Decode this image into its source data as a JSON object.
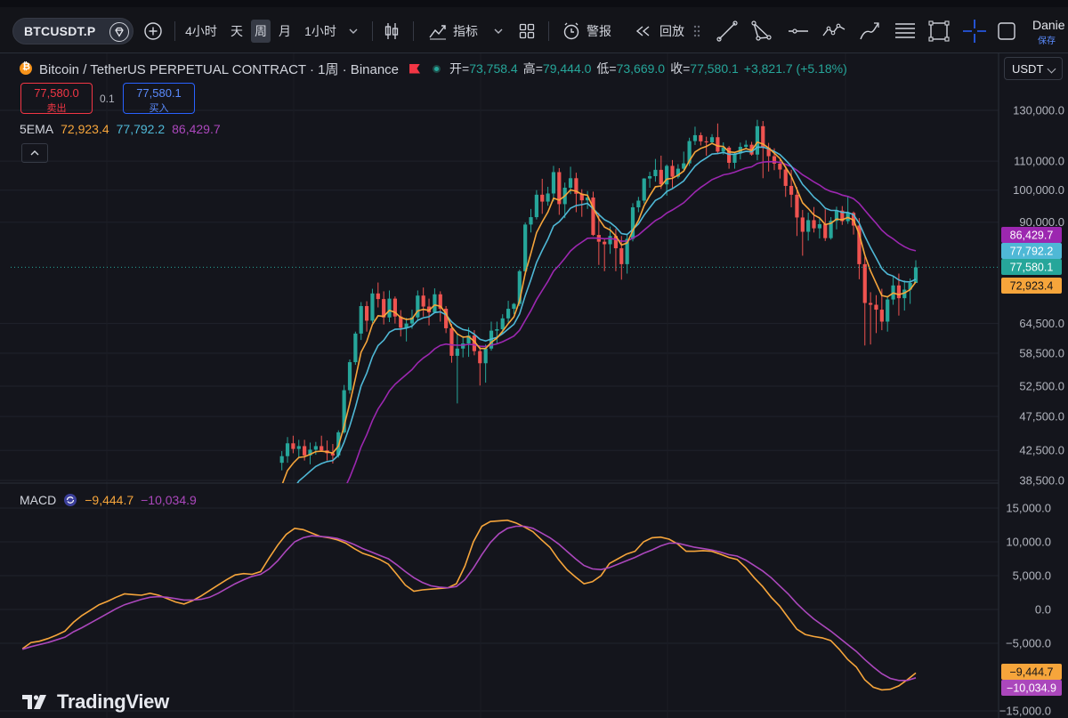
{
  "toolbar": {
    "symbol": "BTCUSDT.P",
    "intervals": [
      {
        "label": "4小时",
        "active": false
      },
      {
        "label": "天",
        "active": false
      },
      {
        "label": "周",
        "active": true
      },
      {
        "label": "月",
        "active": false
      },
      {
        "label": "1小时",
        "active": false
      }
    ],
    "indicators_label": "指标",
    "alert_label": "警报",
    "replay_label": "回放",
    "user_name": "Danie",
    "save_label": "保存"
  },
  "legend": {
    "title": "Bitcoin / TetherUS PERPETUAL CONTRACT · 1周 · Binance",
    "open_label": "开",
    "open": "73,758.4",
    "high_label": "高",
    "high": "79,444.0",
    "low_label": "低",
    "low": "73,669.0",
    "close_label": "收",
    "close": "77,580.1",
    "change": "+3,821.7 (+5.18%)"
  },
  "trade": {
    "sell_price": "77,580.0",
    "sell_label": "卖出",
    "spread": "0.1",
    "buy_price": "77,580.1",
    "buy_label": "买入"
  },
  "ema": {
    "label": "5EMA",
    "values": [
      "72,923.4",
      "77,792.2",
      "86,429.7"
    ]
  },
  "currency": "USDT",
  "macd": {
    "label": "MACD",
    "macd_value": "−9,444.7",
    "signal_value": "−10,034.9"
  },
  "brand": "TradingView",
  "colors": {
    "up": "#26a69a",
    "down": "#ef5350",
    "ema_fast": "#f6a53b",
    "ema_mid": "#4fb8d6",
    "ema_slow": "#9c27b0",
    "macd": "#f6a53b",
    "signal": "#ab47bc"
  },
  "chart_data": [
    {
      "type": "candlestick",
      "title": "Bitcoin / TetherUS PERPETUAL CONTRACT · 1周 · Binance",
      "y_ticks": [
        "130,000.0",
        "110,000.0",
        "100,000.0",
        "90,000.0",
        "64,500.0",
        "58,500.0",
        "52,500.0",
        "47,500.0",
        "42,500.0",
        "38,500.0"
      ],
      "price_badges": [
        {
          "label": "86,429.7",
          "color": "#9c27b0"
        },
        {
          "label": "77,792.2",
          "color": "#4fb8d6"
        },
        {
          "label": "77,580.1",
          "color": "#26a69a"
        },
        {
          "label": "72,923.4",
          "color": "#f6a53b"
        }
      ],
      "candles": [
        [
          40800,
          42400,
          39800,
          41700
        ],
        [
          41700,
          44400,
          40800,
          43500
        ],
        [
          43500,
          44600,
          42100,
          42700
        ],
        [
          42700,
          44000,
          41400,
          43100
        ],
        [
          43100,
          44000,
          41100,
          41800
        ],
        [
          41800,
          43600,
          40600,
          42600
        ],
        [
          42600,
          43700,
          41900,
          43100
        ],
        [
          43100,
          44600,
          42400,
          42500
        ],
        [
          42500,
          43900,
          41100,
          42100
        ],
        [
          42100,
          43400,
          40700,
          41800
        ],
        [
          41800,
          45400,
          41500,
          45100
        ],
        [
          45100,
          52700,
          44900,
          51800
        ],
        [
          51800,
          57300,
          51200,
          56800
        ],
        [
          56800,
          62800,
          56300,
          62400
        ],
        [
          62400,
          69200,
          61100,
          68300
        ],
        [
          68300,
          69400,
          62800,
          65100
        ],
        [
          65100,
          72300,
          64600,
          71200
        ],
        [
          71200,
          73800,
          68000,
          69900
        ],
        [
          69900,
          71700,
          64300,
          65800
        ],
        [
          65800,
          71900,
          64800,
          70000
        ],
        [
          70000,
          70500,
          64500,
          66000
        ],
        [
          66000,
          67400,
          61800,
          63600
        ],
        [
          63600,
          65700,
          60800,
          64500
        ],
        [
          64500,
          67500,
          63400,
          65800
        ],
        [
          65800,
          71900,
          65200,
          70700
        ],
        [
          70700,
          72600,
          66000,
          68200
        ],
        [
          68200,
          70000,
          64100,
          66900
        ],
        [
          66900,
          72400,
          66700,
          71000
        ],
        [
          71000,
          71700,
          64900,
          67700
        ],
        [
          67700,
          68300,
          62500,
          63500
        ],
        [
          63500,
          64400,
          56700,
          58000
        ],
        [
          58000,
          62400,
          49600,
          59400
        ],
        [
          59400,
          61900,
          57700,
          60400
        ],
        [
          60400,
          63700,
          57800,
          62000
        ],
        [
          62000,
          63100,
          58100,
          58900
        ],
        [
          58900,
          59900,
          52600,
          56600
        ],
        [
          56600,
          60200,
          53100,
          59400
        ],
        [
          59400,
          64900,
          59000,
          63000
        ],
        [
          63000,
          64900,
          60300,
          63300
        ],
        [
          63300,
          66500,
          62400,
          65600
        ],
        [
          65600,
          69500,
          64700,
          67700
        ],
        [
          67700,
          69000,
          66500,
          68800
        ],
        [
          68800,
          77000,
          68300,
          76600
        ],
        [
          76600,
          89900,
          75700,
          89300
        ],
        [
          89300,
          94000,
          87000,
          91500
        ],
        [
          91500,
          100000,
          90800,
          98500
        ],
        [
          98500,
          103800,
          92500,
          96300
        ],
        [
          96300,
          101100,
          95000,
          98900
        ],
        [
          98900,
          108300,
          96400,
          106100
        ],
        [
          106100,
          107500,
          92200,
          95500
        ],
        [
          95500,
          102500,
          91200,
          100800
        ],
        [
          100800,
          108000,
          98700,
          104000
        ],
        [
          104000,
          105900,
          93000,
          98800
        ],
        [
          98800,
          100300,
          91600,
          96700
        ],
        [
          96700,
          99700,
          94000,
          97600
        ],
        [
          97600,
          99500,
          86000,
          86300
        ],
        [
          86300,
          92800,
          78200,
          84400
        ],
        [
          84400,
          85300,
          76600,
          83700
        ],
        [
          83700,
          88700,
          81100,
          86000
        ],
        [
          86000,
          88000,
          76600,
          82600
        ],
        [
          82600,
          86000,
          74500,
          78400
        ],
        [
          78400,
          86500,
          76000,
          85200
        ],
        [
          85200,
          95800,
          84500,
          94500
        ],
        [
          94500,
          97800,
          93000,
          96600
        ],
        [
          96600,
          104000,
          95700,
          103900
        ],
        [
          103900,
          106200,
          100800,
          104700
        ],
        [
          104700,
          110800,
          102800,
          106900
        ],
        [
          106900,
          112000,
          100400,
          101900
        ],
        [
          101900,
          108800,
          98200,
          108300
        ],
        [
          108300,
          110400,
          100800,
          104500
        ],
        [
          104500,
          108900,
          103900,
          107300
        ],
        [
          107300,
          113500,
          106900,
          109200
        ],
        [
          109200,
          118800,
          108300,
          117500
        ],
        [
          117500,
          123200,
          116000,
          119800
        ],
        [
          119800,
          120900,
          115800,
          117400
        ],
        [
          117400,
          119200,
          112000,
          117000
        ],
        [
          117000,
          120200,
          116300,
          119000
        ],
        [
          119000,
          124500,
          112700,
          113500
        ],
        [
          113500,
          117000,
          112400,
          115000
        ],
        [
          115000,
          115600,
          107300,
          109400
        ],
        [
          109400,
          113200,
          107300,
          112800
        ],
        [
          112800,
          116900,
          110600,
          115300
        ],
        [
          115300,
          117800,
          114600,
          116100
        ],
        [
          116100,
          117200,
          112000,
          112400
        ],
        [
          112400,
          126000,
          110300,
          123400
        ],
        [
          123400,
          125500,
          104000,
          115000
        ],
        [
          115000,
          116800,
          106300,
          111800
        ],
        [
          111800,
          114700,
          106800,
          109100
        ],
        [
          109100,
          110500,
          103900,
          107000
        ],
        [
          107000,
          108300,
          97800,
          101400
        ],
        [
          101400,
          106900,
          94500,
          98500
        ],
        [
          98500,
          101000,
          86000,
          91400
        ],
        [
          91400,
          93700,
          80600,
          87200
        ],
        [
          87200,
          92900,
          84700,
          90600
        ],
        [
          90600,
          94600,
          87000,
          88200
        ],
        [
          88200,
          91200,
          85300,
          89400
        ],
        [
          89400,
          93900,
          84600,
          85400
        ],
        [
          85400,
          91500,
          85000,
          90400
        ],
        [
          90400,
          94700,
          87900,
          93500
        ],
        [
          93500,
          94900,
          89200,
          90300
        ],
        [
          90300,
          97900,
          89500,
          92800
        ],
        [
          92800,
          93200,
          86400,
          89000
        ],
        [
          89000,
          91200,
          74600,
          78400
        ],
        [
          78400,
          80300,
          60000,
          69000
        ],
        [
          69000,
          71500,
          60200,
          68600
        ],
        [
          68600,
          70800,
          62500,
          67500
        ],
        [
          67500,
          72300,
          63100,
          64900
        ],
        [
          64900,
          70600,
          62800,
          69800
        ],
        [
          69800,
          75400,
          68600,
          73100
        ],
        [
          73100,
          76000,
          66200,
          70100
        ],
        [
          70100,
          74300,
          67300,
          72100
        ],
        [
          72100,
          74800,
          68800,
          73700
        ],
        [
          73700,
          79400,
          73700,
          77600
        ]
      ],
      "ema_fast_label": "72,923.4",
      "ema_mid_label": "77,792.2",
      "ema_slow_label": "86,429.7"
    },
    {
      "type": "line",
      "title": "MACD",
      "y_ticks": [
        "15,000.0",
        "10,000.0",
        "5,000.0",
        "0.0",
        "−5,000.0",
        "−15,000.0"
      ],
      "y_badges": [
        {
          "label": "−9,444.7",
          "color": "#f6a53b"
        },
        {
          "label": "−10,034.9",
          "color": "#ab47bc"
        }
      ],
      "series": [
        {
          "name": "MACD",
          "values": [
            -5800,
            -4900,
            -4700,
            -4300,
            -3800,
            -3200,
            -1900,
            -900,
            -100,
            700,
            1200,
            1800,
            2300,
            2200,
            2100,
            2400,
            2100,
            1600,
            1100,
            800,
            1300,
            2000,
            2800,
            3600,
            4400,
            5100,
            5300,
            5200,
            5600,
            7600,
            9500,
            11100,
            12000,
            11800,
            11300,
            10800,
            10600,
            10300,
            9800,
            9000,
            8300,
            7900,
            7400,
            6700,
            5200,
            3600,
            2700,
            2900,
            3000,
            3100,
            3200,
            3800,
            6400,
            10000,
            12300,
            13000,
            13100,
            13200,
            12800,
            12200,
            11500,
            10300,
            9200,
            7400,
            5900,
            4800,
            3800,
            4100,
            5000,
            6800,
            7500,
            8200,
            8600,
            10000,
            10600,
            10700,
            10400,
            9700,
            8600,
            8600,
            8700,
            8600,
            8200,
            7700,
            7400,
            6200,
            4700,
            3400,
            1800,
            500,
            -1200,
            -2900,
            -3700,
            -4000,
            -4200,
            -4600,
            -5900,
            -7400,
            -8500,
            -10400,
            -11500,
            -11900,
            -11800,
            -11300,
            -10400,
            -9400
          ]
        },
        {
          "name": "Signal",
          "values": [
            -5900,
            -5500,
            -5200,
            -4900,
            -4500,
            -4100,
            -3300,
            -2700,
            -2000,
            -1300,
            -600,
            100,
            700,
            1100,
            1500,
            1800,
            1900,
            1800,
            1600,
            1400,
            1400,
            1500,
            1800,
            2400,
            3100,
            3800,
            4400,
            4900,
            5200,
            6000,
            7200,
            8700,
            10000,
            10600,
            10900,
            10800,
            10700,
            10500,
            10100,
            9600,
            9000,
            8500,
            8000,
            7500,
            6600,
            5600,
            4700,
            4000,
            3500,
            3300,
            3200,
            3400,
            4400,
            6100,
            8100,
            9900,
            11200,
            12000,
            12300,
            12300,
            12000,
            11300,
            10600,
            9700,
            8600,
            7500,
            6500,
            6000,
            5900,
            6200,
            6700,
            7200,
            7700,
            8300,
            8800,
            9400,
            9800,
            9800,
            9500,
            9200,
            9000,
            8800,
            8500,
            8100,
            7900,
            7300,
            6500,
            5700,
            4700,
            3500,
            2300,
            900,
            -300,
            -1400,
            -2300,
            -3200,
            -4200,
            -5200,
            -6200,
            -7400,
            -8500,
            -9500,
            -10200,
            -10500,
            -10500,
            -10100
          ]
        }
      ]
    }
  ]
}
